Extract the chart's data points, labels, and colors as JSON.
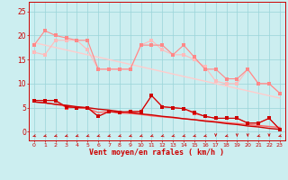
{
  "x": [
    0,
    1,
    2,
    3,
    4,
    5,
    6,
    7,
    8,
    9,
    10,
    11,
    12,
    13,
    14,
    15,
    16,
    17,
    18,
    19,
    20,
    21,
    22,
    23
  ],
  "gust_line1": [
    18,
    21,
    20,
    19.5,
    19,
    19,
    13,
    13,
    13,
    13,
    18,
    18,
    18,
    16,
    18,
    15.5,
    13,
    13,
    11,
    11,
    13,
    10,
    10,
    8
  ],
  "gust_line2": [
    16.5,
    16,
    19,
    19,
    19,
    17,
    13,
    13,
    13,
    13,
    18,
    19,
    17,
    16,
    16,
    15,
    13.5,
    10.5,
    10,
    10,
    13,
    10,
    10,
    8
  ],
  "gust_trend": [
    18.5,
    18.0,
    17.5,
    17.0,
    16.5,
    16.0,
    15.5,
    15.0,
    14.5,
    14.0,
    13.5,
    13.0,
    12.5,
    12.0,
    11.5,
    11.0,
    10.5,
    10.0,
    9.5,
    9.0,
    8.5,
    8.0,
    7.5,
    7.0
  ],
  "mean_line1": [
    6.5,
    6.5,
    6.5,
    5.2,
    5.0,
    5.0,
    3.2,
    4.2,
    4.0,
    4.2,
    4.2,
    7.5,
    5.2,
    5.0,
    4.8,
    4.0,
    3.2,
    2.8,
    2.8,
    2.8,
    1.8,
    1.8,
    2.8,
    0.5
  ],
  "mean_line2": [
    6.5,
    6.5,
    6.5,
    5.0,
    5.0,
    5.0,
    3.2,
    4.2,
    4.0,
    4.2,
    4.2,
    7.5,
    5.2,
    5.0,
    4.8,
    3.8,
    3.2,
    2.8,
    2.8,
    2.8,
    1.8,
    1.8,
    2.8,
    0.5
  ],
  "mean_trend1": [
    6.2,
    6.0,
    5.7,
    5.5,
    5.2,
    5.0,
    4.7,
    4.5,
    4.2,
    4.0,
    3.7,
    3.5,
    3.2,
    3.0,
    2.7,
    2.5,
    2.2,
    2.0,
    1.7,
    1.5,
    1.2,
    1.0,
    0.7,
    0.5
  ],
  "mean_trend2": [
    6.2,
    6.0,
    5.7,
    5.3,
    5.0,
    4.8,
    4.0,
    4.2,
    3.9,
    3.8,
    3.6,
    3.3,
    3.1,
    2.9,
    2.7,
    2.5,
    2.3,
    2.1,
    1.9,
    1.7,
    1.5,
    1.3,
    1.1,
    0.9
  ],
  "arrow_angles_deg": [
    225,
    225,
    225,
    225,
    225,
    225,
    225,
    225,
    225,
    225,
    225,
    225,
    225,
    225,
    225,
    225,
    225,
    270,
    225,
    270,
    270,
    225,
    270,
    225
  ],
  "bg_color": "#cceef0",
  "grid_color": "#99d4d8",
  "color_gust_dark": "#ff8888",
  "color_gust_light": "#ffbbbb",
  "color_mean_dark": "#cc0000",
  "color_mean_med": "#ff4444",
  "color_trend_gust": "#ffcccc",
  "color_trend_mean_dark": "#cc0000",
  "color_trend_mean_light": "#ff6666",
  "color_arrow": "#cc0000",
  "xlabel": "Vent moyen/en rafales ( km/h )",
  "ylim": [
    -1.8,
    27
  ],
  "xlim": [
    -0.5,
    23.5
  ],
  "yticks": [
    0,
    5,
    10,
    15,
    20,
    25
  ],
  "xticks": [
    0,
    1,
    2,
    3,
    4,
    5,
    6,
    7,
    8,
    9,
    10,
    11,
    12,
    13,
    14,
    15,
    16,
    17,
    18,
    19,
    20,
    21,
    22,
    23
  ]
}
